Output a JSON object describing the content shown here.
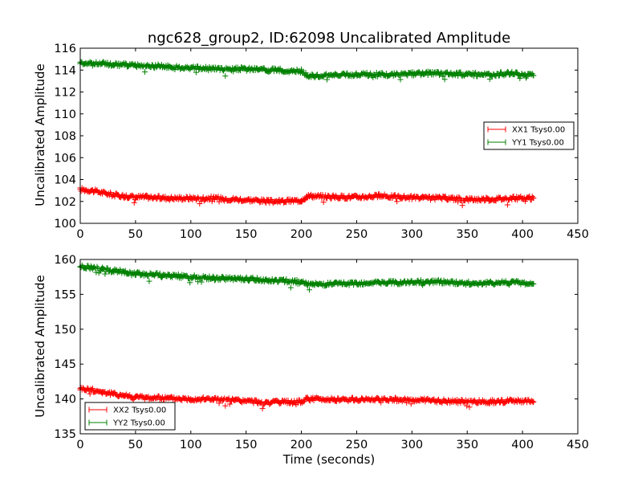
{
  "chart_data": [
    {
      "type": "line",
      "title": "ngc628_group2, ID:62098 Uncalibrated Amplitude",
      "xlabel": "",
      "ylabel": "Uncalibrated Amplitude",
      "xlim": [
        0,
        450
      ],
      "ylim": [
        100,
        116
      ],
      "x_ticks": [
        0,
        50,
        100,
        150,
        200,
        250,
        300,
        350,
        400,
        450
      ],
      "y_ticks": [
        100,
        102,
        104,
        106,
        108,
        110,
        112,
        114,
        116
      ],
      "legend_position": "center-right",
      "grid": false,
      "marker": "plus",
      "series": [
        {
          "name": "XX1 Tsys0.00",
          "color": "#ff0000",
          "x": [
            0,
            10,
            20,
            30,
            40,
            50,
            60,
            80,
            100,
            120,
            140,
            160,
            170,
            180,
            200,
            205,
            210,
            230,
            250,
            270,
            290,
            310,
            330,
            350,
            370,
            390,
            410
          ],
          "y": [
            103.1,
            103.0,
            102.8,
            102.6,
            102.5,
            102.4,
            102.4,
            102.3,
            102.3,
            102.3,
            102.2,
            102.1,
            102.0,
            102.0,
            102.1,
            102.5,
            102.5,
            102.4,
            102.4,
            102.5,
            102.4,
            102.3,
            102.3,
            102.2,
            102.2,
            102.3,
            102.3
          ]
        },
        {
          "name": "YY1 Tsys0.00",
          "color": "#008000",
          "x": [
            0,
            10,
            20,
            30,
            40,
            50,
            60,
            80,
            100,
            120,
            140,
            160,
            170,
            180,
            200,
            205,
            210,
            230,
            250,
            270,
            290,
            310,
            330,
            350,
            370,
            390,
            410
          ],
          "y": [
            114.7,
            114.6,
            114.6,
            114.5,
            114.5,
            114.4,
            114.4,
            114.3,
            114.2,
            114.1,
            114.1,
            114.1,
            114.0,
            114.0,
            113.9,
            113.5,
            113.5,
            113.5,
            113.6,
            113.6,
            113.6,
            113.7,
            113.7,
            113.6,
            113.6,
            113.7,
            113.5
          ]
        }
      ]
    },
    {
      "type": "line",
      "title": "",
      "xlabel": "Time (seconds)",
      "ylabel": "Uncalibrated Amplitude",
      "xlim": [
        0,
        450
      ],
      "ylim": [
        135,
        160
      ],
      "x_ticks": [
        0,
        50,
        100,
        150,
        200,
        250,
        300,
        350,
        400,
        450
      ],
      "y_ticks": [
        135,
        140,
        145,
        150,
        155,
        160
      ],
      "legend_position": "lower-left",
      "grid": false,
      "marker": "plus",
      "series": [
        {
          "name": "XX2 Tsys0.00",
          "color": "#ff0000",
          "x": [
            0,
            10,
            20,
            30,
            40,
            50,
            60,
            80,
            100,
            120,
            140,
            160,
            170,
            180,
            200,
            205,
            210,
            230,
            250,
            270,
            290,
            310,
            330,
            350,
            370,
            390,
            410
          ],
          "y": [
            141.5,
            141.3,
            141.0,
            140.7,
            140.5,
            140.3,
            140.2,
            140.1,
            140.0,
            140.0,
            139.8,
            139.6,
            139.5,
            139.5,
            139.6,
            140.0,
            140.0,
            139.9,
            139.9,
            140.0,
            139.9,
            139.8,
            139.7,
            139.6,
            139.6,
            139.7,
            139.6
          ]
        },
        {
          "name": "YY2 Tsys0.00",
          "color": "#008000",
          "x": [
            0,
            10,
            20,
            30,
            40,
            50,
            60,
            80,
            100,
            120,
            140,
            160,
            170,
            180,
            200,
            205,
            210,
            230,
            250,
            270,
            290,
            310,
            330,
            350,
            370,
            390,
            410
          ],
          "y": [
            159.0,
            158.8,
            158.6,
            158.4,
            158.2,
            158.0,
            157.9,
            157.7,
            157.5,
            157.3,
            157.2,
            157.2,
            157.0,
            157.0,
            156.8,
            156.4,
            156.4,
            156.5,
            156.6,
            156.7,
            156.7,
            156.8,
            156.8,
            156.6,
            156.6,
            156.8,
            156.5
          ]
        }
      ]
    }
  ]
}
